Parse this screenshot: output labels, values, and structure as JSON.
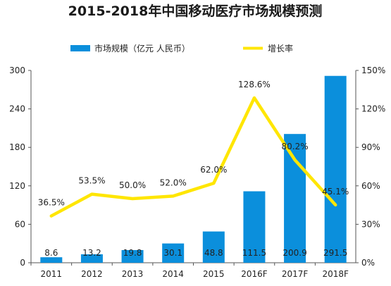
{
  "chart_data": {
    "type": "bar",
    "title": "2015-2018年中国移动医疗市场规模预测",
    "categories": [
      "2011",
      "2012",
      "2013",
      "2014",
      "2015",
      "2016F",
      "2017F",
      "2018F"
    ],
    "series": [
      {
        "name": "市场规模（亿元 人民币）",
        "type": "bar",
        "axis": "left",
        "color": "#0b8fdc",
        "values": [
          8.6,
          13.2,
          19.8,
          30.1,
          48.8,
          111.5,
          200.9,
          291.5
        ],
        "labels": [
          "8.6",
          "13.2",
          "19.8",
          "30.1",
          "48.8",
          "111.5",
          "200.9",
          "291.5"
        ]
      },
      {
        "name": "增长率",
        "type": "line",
        "axis": "right",
        "color": "#ffe600",
        "values": [
          36.5,
          53.5,
          50.0,
          52.0,
          62.0,
          128.6,
          80.2,
          45.1
        ],
        "labels": [
          "36.5%",
          "53.5%",
          "50.0%",
          "52.0%",
          "62.0%",
          "128.6%",
          "80.2%",
          "45.1%"
        ]
      }
    ],
    "y_left": {
      "min": 0,
      "max": 300,
      "ticks": [
        "0",
        "60",
        "120",
        "180",
        "240",
        "300"
      ]
    },
    "y_right": {
      "min": 0,
      "max": 150,
      "ticks": [
        "0%",
        "30%",
        "60%",
        "90%",
        "120%",
        "150%"
      ]
    },
    "legend_position": "top",
    "grid": false
  }
}
